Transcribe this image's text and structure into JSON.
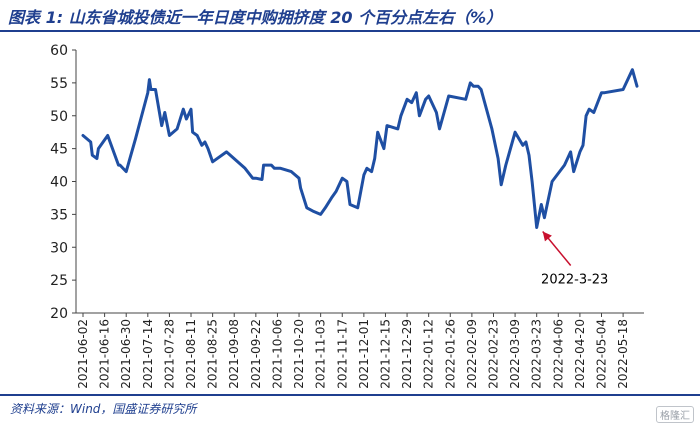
{
  "header": {
    "title": "图表 1:  山东省城投债近一年日度中购拥挤度 20 个百分点左右（%）"
  },
  "footer": {
    "source": "资料来源：Wind，国盛证券研究所",
    "watermark": "格隆汇"
  },
  "chart_data": {
    "type": "line",
    "title": "",
    "xlabel": "",
    "ylabel": "",
    "ylim": [
      20,
      60
    ],
    "yticks": [
      20,
      25,
      30,
      35,
      40,
      45,
      50,
      55,
      60
    ],
    "grid": false,
    "color": "#1f4fa3",
    "x_tick_labels": [
      "2021-06-02",
      "2021-06-16",
      "2021-06-30",
      "2021-07-14",
      "2021-07-28",
      "2021-08-11",
      "2021-08-25",
      "2021-09-08",
      "2021-09-22",
      "2021-10-06",
      "2021-10-20",
      "2021-11-03",
      "2021-11-17",
      "2021-12-01",
      "2021-12-15",
      "2021-12-29",
      "2022-01-12",
      "2022-01-26",
      "2022-02-09",
      "2022-02-23",
      "2022-03-09",
      "2022-03-23",
      "2022-04-06",
      "2022-04-20",
      "2022-05-04",
      "2022-05-18"
    ],
    "x_range": [
      "2021-06-02",
      "2022-05-27"
    ],
    "series": [
      {
        "x": [
          "2021-06-02",
          "2021-06-07",
          "2021-06-08",
          "2021-06-11",
          "2021-06-12",
          "2021-06-15",
          "2021-06-18",
          "2021-06-25",
          "2021-06-26",
          "2021-06-30",
          "2021-07-06",
          "2021-07-14",
          "2021-07-15",
          "2021-07-16",
          "2021-07-19",
          "2021-07-23",
          "2021-07-25",
          "2021-07-28",
          "2021-08-02",
          "2021-08-06",
          "2021-08-08",
          "2021-08-11",
          "2021-08-12",
          "2021-08-15",
          "2021-08-18",
          "2021-08-20",
          "2021-08-22",
          "2021-08-25",
          "2021-09-03",
          "2021-09-15",
          "2021-09-20",
          "2021-09-22",
          "2021-09-26",
          "2021-09-27",
          "2021-10-02",
          "2021-10-04",
          "2021-10-08",
          "2021-10-15",
          "2021-10-20",
          "2021-10-21",
          "2021-10-25",
          "2021-10-29",
          "2021-11-03",
          "2021-11-06",
          "2021-11-10",
          "2021-11-13",
          "2021-11-17",
          "2021-11-20",
          "2021-11-22",
          "2021-11-27",
          "2021-12-01",
          "2021-12-03",
          "2021-12-06",
          "2021-12-08",
          "2021-12-10",
          "2021-12-14",
          "2021-12-16",
          "2021-12-23",
          "2021-12-25",
          "2021-12-29",
          "2022-01-01",
          "2022-01-04",
          "2022-01-06",
          "2022-01-10",
          "2022-01-12",
          "2022-01-17",
          "2022-01-19",
          "2022-01-25",
          "2022-02-05",
          "2022-02-08",
          "2022-02-10",
          "2022-02-13",
          "2022-02-15",
          "2022-02-22",
          "2022-02-26",
          "2022-02-28",
          "2022-03-03",
          "2022-03-09",
          "2022-03-14",
          "2022-03-16",
          "2022-03-18",
          "2022-03-20",
          "2022-03-23",
          "2022-03-26",
          "2022-03-28",
          "2022-04-02",
          "2022-04-10",
          "2022-04-14",
          "2022-04-16",
          "2022-04-20",
          "2022-04-22",
          "2022-04-24",
          "2022-04-26",
          "2022-04-29",
          "2022-05-04",
          "2022-05-06",
          "2022-05-18",
          "2022-05-24",
          "2022-05-27"
        ],
        "y": [
          47.0,
          46.0,
          44.0,
          43.5,
          45.0,
          46.0,
          47.0,
          42.5,
          42.5,
          41.5,
          46.5,
          53.5,
          55.5,
          54.0,
          54.0,
          48.5,
          50.5,
          47.0,
          48.0,
          51.0,
          49.5,
          51.0,
          47.5,
          47.0,
          45.5,
          46.0,
          45.0,
          43.0,
          44.5,
          42.0,
          40.5,
          40.5,
          40.3,
          42.5,
          42.5,
          42.0,
          42.0,
          41.5,
          40.5,
          39.0,
          36.0,
          35.5,
          35.0,
          36.0,
          37.5,
          38.5,
          40.5,
          40.0,
          36.5,
          36.0,
          41.0,
          42.0,
          41.5,
          43.5,
          47.5,
          45.0,
          48.5,
          48.0,
          50.0,
          52.5,
          52.0,
          53.5,
          50.0,
          52.5,
          53.0,
          50.5,
          48.0,
          53.0,
          52.5,
          55.0,
          54.5,
          54.5,
          54.0,
          48.0,
          43.5,
          39.5,
          42.5,
          47.5,
          45.5,
          46.0,
          44.0,
          40.0,
          33.0,
          36.5,
          34.5,
          40.0,
          42.5,
          44.5,
          41.5,
          44.5,
          45.5,
          50.0,
          51.0,
          50.5,
          53.5,
          53.5,
          54.0,
          57.0,
          54.5
        ]
      }
    ],
    "annotations": [
      {
        "text": "2022-3-23",
        "x": "2022-03-23",
        "y": 33.0
      }
    ]
  }
}
